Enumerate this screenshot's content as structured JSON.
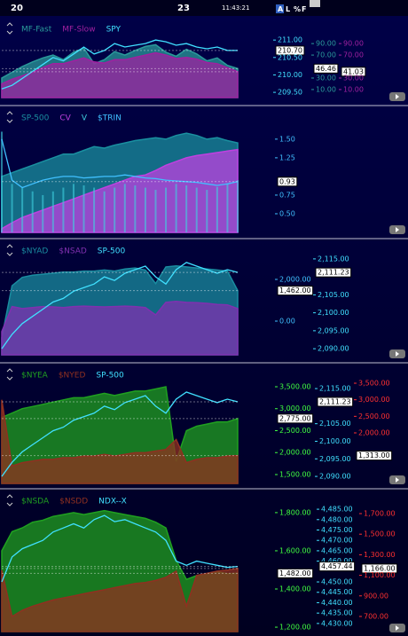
{
  "header": {
    "day_left": "20",
    "day_right": "23",
    "time": "11:43:21",
    "buttons": [
      "A",
      "L",
      "%",
      "F"
    ]
  },
  "panels": [
    {
      "axes": [
        {
          "color": "#40e0ff",
          "lim": [
            209.35,
            211.08
          ],
          "ticks": [
            {
              "value": 211,
              "label": "211.00"
            },
            {
              "value": 210.7,
              "label": "210.70",
              "box": true
            },
            {
              "value": 210.5,
              "label": "210.50"
            },
            {
              "value": 210,
              "label": "210.00"
            },
            {
              "value": 209.5,
              "label": "209.50"
            }
          ]
        },
        {
          "color": "#2a9a9a",
          "lim": [
            -4,
            101
          ],
          "ticks": [
            {
              "value": 90,
              "label": "90.00"
            },
            {
              "value": 70,
              "label": "70.00"
            },
            {
              "value": 46.46,
              "label": "46.46",
              "box": true
            },
            {
              "value": 30,
              "label": "30.00"
            },
            {
              "value": 10,
              "label": "10.00"
            }
          ]
        },
        {
          "color": "#a020a0",
          "lim": [
            -4,
            101
          ],
          "ticks": [
            {
              "value": 90,
              "label": "90.00"
            },
            {
              "value": 70,
              "label": "70.00"
            },
            {
              "value": 41.03,
              "label": "41.03",
              "box": true
            },
            {
              "value": 30,
              "label": "30.00"
            },
            {
              "value": 10,
              "label": "10.00"
            }
          ]
        }
      ],
      "series": [
        {
          "name": "MF-Fast",
          "color": "#2a9a9a",
          "axis": 1,
          "style": "area",
          "values": [
            30,
            40,
            50,
            58,
            65,
            70,
            62,
            75,
            82,
            55,
            62,
            76,
            70,
            78,
            85,
            88,
            75,
            68,
            80,
            72,
            60,
            65,
            52,
            46.46
          ]
        },
        {
          "name": "MF-Slow",
          "color": "#a020a0",
          "axis": 2,
          "style": "area",
          "values": [
            20,
            28,
            34,
            40,
            48,
            55,
            55,
            60,
            65,
            58,
            56,
            62,
            62,
            66,
            70,
            74,
            70,
            64,
            66,
            63,
            57,
            55,
            48,
            41.03
          ]
        },
        {
          "name": "SPY",
          "color": "#40e0ff",
          "axis": 0,
          "style": "line",
          "values": [
            209.6,
            209.7,
            209.9,
            210.1,
            210.3,
            210.5,
            210.4,
            210.6,
            210.8,
            210.6,
            210.7,
            210.9,
            210.8,
            210.85,
            210.9,
            211.0,
            210.95,
            210.85,
            210.9,
            210.8,
            210.75,
            210.8,
            210.7,
            210.7
          ]
        }
      ]
    },
    {
      "axes": [
        {
          "color": "#40c0ff",
          "lim": [
            0.25,
            1.76
          ],
          "ticks": [
            {
              "value": 1.5,
              "label": "1.50"
            },
            {
              "value": 1.25,
              "label": "1.25"
            },
            {
              "value": 0.93,
              "label": "0.93",
              "box": true
            },
            {
              "value": 0.75,
              "label": "0.75"
            },
            {
              "value": 0.5,
              "label": "0.50"
            }
          ]
        }
      ],
      "series": [
        {
          "name": "SP-500",
          "color": "#1a90a0",
          "axis": 0,
          "style": "area",
          "values": [
            1.0,
            1.05,
            1.1,
            1.15,
            1.2,
            1.25,
            1.3,
            1.3,
            1.35,
            1.4,
            1.38,
            1.42,
            1.45,
            1.48,
            1.5,
            1.52,
            1.5,
            1.55,
            1.58,
            1.55,
            1.5,
            1.52,
            1.48,
            1.45
          ]
        },
        {
          "name": "CV",
          "color": "#c040e0",
          "axis": 0,
          "style": "area",
          "values": [
            0.3,
            0.38,
            0.45,
            0.5,
            0.55,
            0.6,
            0.65,
            0.7,
            0.75,
            0.8,
            0.85,
            0.9,
            0.95,
            1.0,
            1.02,
            1.08,
            1.15,
            1.2,
            1.25,
            1.28,
            1.3,
            1.32,
            1.34,
            1.36
          ]
        },
        {
          "name": "V",
          "color": "#40d0e0",
          "axis": 0,
          "style": "bars",
          "values": [
            1.6,
            0.9,
            0.85,
            0.8,
            0.75,
            0.8,
            0.85,
            0.9,
            0.88,
            0.85,
            0.8,
            0.85,
            0.9,
            0.88,
            0.85,
            0.82,
            0.85,
            0.9,
            0.88,
            0.85,
            0.82,
            0.86,
            0.9,
            0.95
          ]
        },
        {
          "name": "$TRIN",
          "color": "#40c0ff",
          "axis": 0,
          "style": "line",
          "values": [
            1.5,
            0.95,
            0.85,
            0.9,
            0.95,
            0.98,
            1.0,
            1.0,
            0.98,
            0.99,
            1.0,
            1.0,
            1.02,
            1.0,
            0.98,
            0.97,
            0.95,
            0.94,
            0.93,
            0.92,
            0.9,
            0.88,
            0.9,
            0.93
          ]
        }
      ]
    },
    {
      "axes": [
        {
          "color": "#40c0ff",
          "lim": [
            -1617,
            3277
          ],
          "ticks": [
            {
              "value": 2000,
              "label": "2,000.00"
            },
            {
              "value": 1462,
              "label": "1,462.00",
              "box": true
            },
            {
              "value": 0,
              "label": "0.00"
            }
          ]
        },
        {
          "color": "#40e0ff",
          "lim": [
            2088.3,
            2116.7
          ],
          "ticks": [
            {
              "value": 2115,
              "label": "2,115.00"
            },
            {
              "value": 2111.23,
              "label": "2,111.23",
              "box": true
            },
            {
              "value": 2105,
              "label": "2,105.00"
            },
            {
              "value": 2100,
              "label": "2,100.00"
            },
            {
              "value": 2095,
              "label": "2,095.00"
            },
            {
              "value": 2090,
              "label": "2,090.00"
            }
          ]
        }
      ],
      "series": [
        {
          "name": "$NYAD",
          "color": "#1a8ca0",
          "axis": 0,
          "style": "area",
          "values": [
            -800,
            1700,
            2100,
            2200,
            2250,
            2300,
            2350,
            2350,
            2400,
            2400,
            2450,
            2400,
            2500,
            2550,
            2450,
            1800,
            2600,
            2650,
            2600,
            2550,
            2500,
            2450,
            2400,
            1462
          ]
        },
        {
          "name": "$NSAD",
          "color": "#8030b0",
          "axis": 0,
          "style": "area",
          "values": [
            -500,
            700,
            600,
            650,
            700,
            680,
            650,
            700,
            720,
            700,
            680,
            700,
            720,
            700,
            650,
            300,
            900,
            950,
            900,
            880,
            850,
            800,
            780,
            600
          ]
        },
        {
          "name": "SP-500",
          "color": "#40e0ff",
          "axis": 1,
          "style": "line",
          "values": [
            2090,
            2094,
            2097,
            2099,
            2101,
            2103,
            2104,
            2106,
            2107,
            2108,
            2110,
            2109,
            2111,
            2112,
            2113,
            2110,
            2108,
            2112,
            2114,
            2113,
            2112,
            2111,
            2112,
            2111.23
          ]
        }
      ]
    },
    {
      "axes": [
        {
          "color": "#40ff40",
          "lim": [
            1298,
            3722
          ],
          "ticks": [
            {
              "value": 3500,
              "label": "3,500.00"
            },
            {
              "value": 3000,
              "label": "3,000.00"
            },
            {
              "value": 2775,
              "label": "2,775.00",
              "box": true
            },
            {
              "value": 2500,
              "label": "2,500.00"
            },
            {
              "value": 2000,
              "label": "2,000.00"
            },
            {
              "value": 1500,
              "label": "1,500.00"
            }
          ]
        },
        {
          "color": "#40e0ff",
          "lim": [
            2088,
            2118.3
          ],
          "ticks": [
            {
              "value": 2115,
              "label": "2,115.00"
            },
            {
              "value": 2111.23,
              "label": "2,111.23",
              "box": true
            },
            {
              "value": 2105,
              "label": "2,105.00"
            },
            {
              "value": 2100,
              "label": "2,100.00"
            },
            {
              "value": 2095,
              "label": "2,095.00"
            },
            {
              "value": 2090,
              "label": "2,090.00"
            }
          ]
        },
        {
          "color": "#ff3030",
          "lim": [
            473,
            3688
          ],
          "ticks": [
            {
              "value": 3500,
              "label": "3,500.00"
            },
            {
              "value": 3000,
              "label": "3,000.00"
            },
            {
              "value": 2500,
              "label": "2,500.00"
            },
            {
              "value": 2000,
              "label": "2,000.00"
            },
            {
              "value": 1313,
              "label": "1,313.00",
              "box": true
            }
          ]
        }
      ],
      "series": [
        {
          "name": "$NYEA",
          "color": "#20a020",
          "axis": 0,
          "style": "area",
          "values": [
            2800,
            2900,
            3000,
            3050,
            3100,
            3150,
            3200,
            3250,
            3250,
            3300,
            3350,
            3300,
            3350,
            3400,
            3400,
            3450,
            3500,
            1800,
            2500,
            2600,
            2650,
            2700,
            2700,
            2775
          ]
        },
        {
          "name": "$NYED",
          "color": "#903020",
          "axis": 2,
          "style": "area",
          "values": [
            3000,
            1000,
            1100,
            1150,
            1200,
            1200,
            1250,
            1250,
            1300,
            1300,
            1350,
            1300,
            1350,
            1400,
            1400,
            1450,
            1500,
            1800,
            1100,
            1200,
            1250,
            1250,
            1300,
            1313
          ]
        },
        {
          "name": "SP-500",
          "color": "#40e0ff",
          "axis": 1,
          "style": "line",
          "values": [
            2090,
            2094,
            2097,
            2099,
            2101,
            2103,
            2104,
            2106,
            2107,
            2108,
            2110,
            2109,
            2111,
            2112,
            2113,
            2110,
            2108,
            2112,
            2114,
            2113,
            2112,
            2111,
            2112,
            2111.23
          ]
        }
      ]
    },
    {
      "axes": [
        {
          "color": "#40ff40",
          "lim": [
            1177,
            1846
          ],
          "ticks": [
            {
              "value": 1800,
              "label": "1,800.00"
            },
            {
              "value": 1600,
              "label": "1,600.00"
            },
            {
              "value": 1482,
              "label": "1,482.00",
              "box": true
            },
            {
              "value": 1400,
              "label": "1,400.00"
            },
            {
              "value": 1200,
              "label": "1,200.00"
            }
          ]
        },
        {
          "color": "#40e0ff",
          "lim": [
            4426.1,
            4487.6
          ],
          "ticks": [
            {
              "value": 4485,
              "label": "4,485.00"
            },
            {
              "value": 4480,
              "label": "4,480.00"
            },
            {
              "value": 4475,
              "label": "4,475.00"
            },
            {
              "value": 4470,
              "label": "4,470.00"
            },
            {
              "value": 4465,
              "label": "4,465.00"
            },
            {
              "value": 4460,
              "label": "4,460.00"
            },
            {
              "value": 4457.44,
              "label": "4,457.44",
              "box": true
            },
            {
              "value": 4450,
              "label": "4,450.00"
            },
            {
              "value": 4445,
              "label": "4,445.00"
            },
            {
              "value": 4440,
              "label": "4,440.00"
            },
            {
              "value": 4435,
              "label": "4,435.00"
            },
            {
              "value": 4430,
              "label": "4,430.00"
            }
          ]
        },
        {
          "color": "#ff3030",
          "lim": [
            553,
            1795
          ],
          "ticks": [
            {
              "value": 1700,
              "label": "1,700.00"
            },
            {
              "value": 1500,
              "label": "1,500.00"
            },
            {
              "value": 1300,
              "label": "1,300.00"
            },
            {
              "value": 1166,
              "label": "1,166.00",
              "box": true
            },
            {
              "value": 1100,
              "label": "1,100.00"
            },
            {
              "value": 900,
              "label": "900.00"
            },
            {
              "value": 700,
              "label": "700.00"
            }
          ]
        }
      ],
      "series": [
        {
          "name": "$NSDA",
          "color": "#20a020",
          "axis": 0,
          "style": "area",
          "values": [
            1600,
            1700,
            1720,
            1750,
            1760,
            1780,
            1790,
            1800,
            1790,
            1800,
            1810,
            1800,
            1790,
            1780,
            1770,
            1750,
            1720,
            1550,
            1450,
            1470,
            1480,
            1490,
            1480,
            1482
          ]
        },
        {
          "name": "$NSDD",
          "color": "#903020",
          "axis": 2,
          "style": "area",
          "values": [
            1150,
            700,
            760,
            800,
            830,
            860,
            880,
            900,
            920,
            940,
            960,
            980,
            1000,
            1020,
            1030,
            1050,
            1080,
            1140,
            800,
            1100,
            1120,
            1140,
            1150,
            1166
          ]
        },
        {
          "name": "NDX--X",
          "color": "#40e0ff",
          "axis": 1,
          "style": "line",
          "values": [
            4450,
            4462,
            4466,
            4468,
            4470,
            4474,
            4476,
            4478,
            4476,
            4480,
            4482,
            4479,
            4480,
            4478,
            4476,
            4474,
            4470,
            4460,
            4458,
            4460,
            4459,
            4458,
            4457,
            4457.44
          ]
        }
      ]
    }
  ]
}
